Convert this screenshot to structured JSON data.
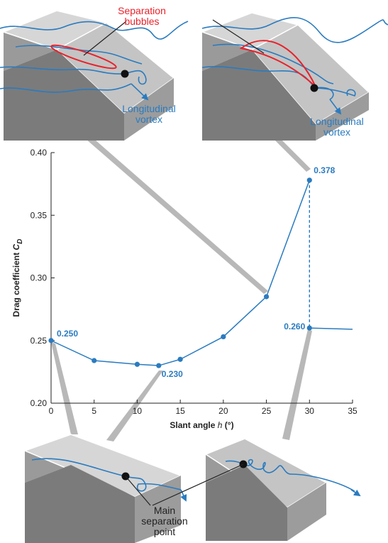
{
  "chart_data": {
    "type": "line",
    "xlabel": [
      "Slant angle ",
      "h",
      " (°)"
    ],
    "ylabel": [
      "Drag coefficient ",
      "C",
      "D"
    ],
    "xlim": [
      0,
      35
    ],
    "xticks": [
      0,
      5,
      10,
      15,
      20,
      25,
      30,
      35
    ],
    "ylim": [
      0.2,
      0.4
    ],
    "yticks": [
      {
        "value": 0.2,
        "label": "0.20"
      },
      {
        "value": 0.25,
        "label": "0.25"
      },
      {
        "value": 0.3,
        "label": "0.30"
      },
      {
        "value": 0.35,
        "label": "0.35"
      },
      {
        "value": 0.4,
        "label": "0.40"
      }
    ],
    "dashed_connector": true,
    "series": [
      {
        "color": "#2a7bc0",
        "x": [
          0,
          5,
          10,
          12.5,
          15,
          20,
          25,
          30
        ],
        "values": [
          0.25,
          0.234,
          0.231,
          0.23,
          0.235,
          0.253,
          0.285,
          0.378
        ],
        "value_labels": [
          "0.250",
          null,
          null,
          "0.230",
          null,
          null,
          null,
          "0.378"
        ]
      },
      {
        "color": "#2a7bc0",
        "x": [
          30,
          35
        ],
        "values": [
          0.26,
          0.259
        ],
        "value_labels": [
          "0.260",
          null
        ]
      }
    ],
    "annotations": [
      {
        "lines": [
          "Separation",
          "bubbles"
        ],
        "color": "#e8222b"
      },
      {
        "lines": [
          "Longitudinal",
          "vortex"
        ],
        "color": "#2a7bc0"
      },
      {
        "lines": [
          "Longitudinal",
          "vortex"
        ],
        "color": "#2a7bc0"
      },
      {
        "lines": [
          "Main",
          "separation",
          "point"
        ],
        "color": "#222222"
      }
    ]
  }
}
